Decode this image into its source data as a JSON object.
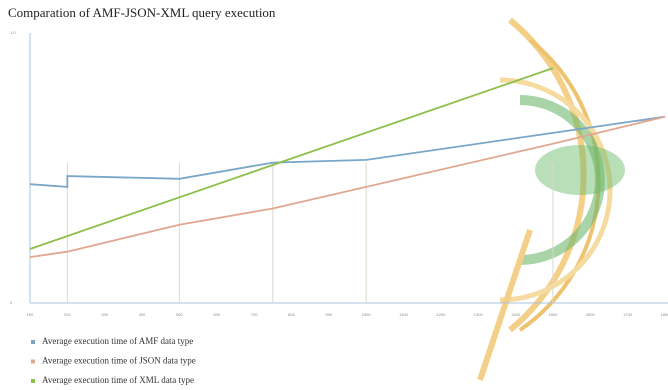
{
  "chart_data": {
    "type": "line",
    "title": "Comparation  of AMF-JSON-XML query execution",
    "xlim": [
      100,
      1800
    ],
    "xticks": [
      100,
      200,
      300,
      400,
      500,
      600,
      700,
      800,
      900,
      1000,
      1100,
      1200,
      1300,
      1400,
      1500,
      1600,
      1700,
      1800
    ],
    "ylim": [
      0,
      1
    ],
    "yticks": [
      0,
      {
        "value": 1,
        "label": "1.0"
      }
    ],
    "xgrid": [
      200,
      500,
      750,
      1000,
      1500
    ],
    "series": [
      {
        "name": "Average execution time of AMF data type",
        "color": "#7aa6c8",
        "x": [
          100,
          200,
          200,
          500,
          750,
          1000,
          1500,
          1800
        ],
        "values": [
          0.44,
          0.43,
          0.47,
          0.46,
          0.52,
          0.53,
          0.63,
          0.69
        ]
      },
      {
        "name": "Average execution time of JSON data type",
        "color": "#e0a890",
        "x": [
          100,
          200,
          500,
          750,
          1000,
          1500,
          1800
        ],
        "values": [
          0.17,
          0.19,
          0.29,
          0.35,
          0.43,
          0.59,
          0.69
        ]
      },
      {
        "name": "Average execution time of XML  data type",
        "color": "#8cc04a",
        "x": [
          100,
          1500
        ],
        "values": [
          0.2,
          0.87
        ]
      }
    ]
  }
}
